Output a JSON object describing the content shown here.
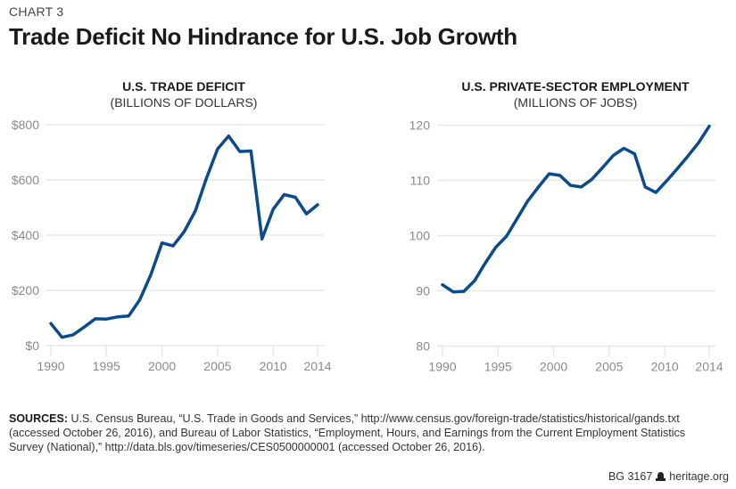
{
  "header": {
    "kicker": "CHART 3",
    "title": "Trade Deficit No Hindrance for U.S. Job Growth"
  },
  "chart_data": [
    {
      "type": "line",
      "title": "U.S. TRADE DEFICIT",
      "subtitle": "(BILLIONS OF DOLLARS)",
      "xlabel": "",
      "ylabel": "",
      "ylim": [
        0,
        800
      ],
      "yticks": [
        0,
        200,
        400,
        600,
        800
      ],
      "ytick_labels": [
        "$0",
        "$200",
        "$400",
        "$600",
        "$800"
      ],
      "xticks": [
        1990,
        1995,
        2000,
        2005,
        2010,
        2014
      ],
      "xtick_labels": [
        "1990",
        "1995",
        "2000",
        "2005",
        "2010",
        "2014"
      ],
      "grid": true,
      "legend": "none",
      "color": "#0b4a8b",
      "x": [
        1990,
        1991,
        1992,
        1993,
        1994,
        1995,
        1996,
        1997,
        1998,
        1999,
        2000,
        2001,
        2002,
        2003,
        2004,
        2005,
        2006,
        2007,
        2008,
        2009,
        2010,
        2011,
        2012,
        2013,
        2014
      ],
      "series": [
        {
          "name": "U.S. Trade Deficit",
          "values": [
            80,
            30,
            39,
            67,
            97,
            96,
            104,
            107,
            166,
            257,
            372,
            361,
            413,
            488,
            606,
            712,
            759,
            703,
            705,
            386,
            494,
            547,
            537,
            477,
            510
          ]
        }
      ]
    },
    {
      "type": "line",
      "title": "U.S. PRIVATE-SECTOR EMPLOYMENT",
      "subtitle": "(MILLIONS OF JOBS)",
      "xlabel": "",
      "ylabel": "",
      "ylim": [
        80,
        120
      ],
      "yticks": [
        80,
        90,
        100,
        110,
        120
      ],
      "ytick_labels": [
        "80",
        "90",
        "100",
        "110",
        "120"
      ],
      "xticks": [
        1990,
        1995,
        2000,
        2005,
        2010,
        2014
      ],
      "xtick_labels": [
        "1990",
        "1995",
        "2000",
        "2005",
        "2010",
        "2014"
      ],
      "grid": true,
      "legend": "none",
      "color": "#0b4a8b",
      "x_span": [
        1990,
        2015
      ],
      "series": [
        {
          "name": "U.S. Private-Sector Employment",
          "values": [
            91.1,
            89.8,
            89.9,
            91.8,
            95.0,
            97.9,
            99.9,
            103.1,
            106.3,
            108.8,
            111.2,
            110.9,
            109.1,
            108.8,
            110.2,
            112.3,
            114.5,
            115.8,
            114.8,
            108.8,
            107.8,
            109.9,
            112.1,
            114.4,
            116.8,
            119.8
          ]
        }
      ]
    }
  ],
  "sources": {
    "label": "SOURCES:",
    "text": " U.S. Census Bureau, “U.S. Trade in Goods and Services,” http://www.census.gov/foreign-trade/statistics/historical/gands.txt (accessed October 26, 2016), and Bureau of Labor Statistics, “Employment, Hours, and Earnings from the Current Employment Statistics Survey (National),” http://data.bls.gov/timeseries/CES0500000001 (accessed October 26, 2016)."
  },
  "footer": {
    "report_id": "BG 3167",
    "icon": "liberty-bell-icon",
    "site": "heritage.org"
  }
}
